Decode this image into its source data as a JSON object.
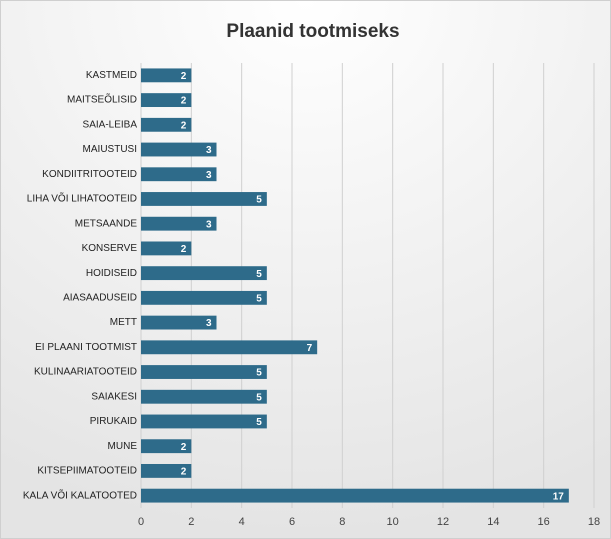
{
  "chart_data": {
    "type": "bar",
    "orientation": "horizontal",
    "title": "Plaanid tootmiseks",
    "categories": [
      "KASTMEID",
      "MAITSEÕLISID",
      "SAIA-LEIBA",
      "MAIUSTUSI",
      "KONDIITRITOOTEID",
      "LIHA VÕI LIHATOOTEID",
      "METSAANDE",
      "KONSERVE",
      "HOIDISEID",
      "AIASAADUSEID",
      "METT",
      "EI PLAANI TOOTMIST",
      "KULINAARIATOOTEID",
      "SAIAKESI",
      "PIRUKAID",
      "MUNE",
      "KITSEPIIMATOOTEID",
      "KALA VÕI KALATOOTED"
    ],
    "values": [
      2,
      2,
      2,
      3,
      3,
      5,
      3,
      2,
      5,
      5,
      3,
      7,
      5,
      5,
      5,
      2,
      2,
      17
    ],
    "color": "#2e6b8a",
    "xlim": [
      0,
      18
    ],
    "xticks": [
      0,
      2,
      4,
      6,
      8,
      10,
      12,
      14,
      16,
      18
    ],
    "grid": true
  }
}
